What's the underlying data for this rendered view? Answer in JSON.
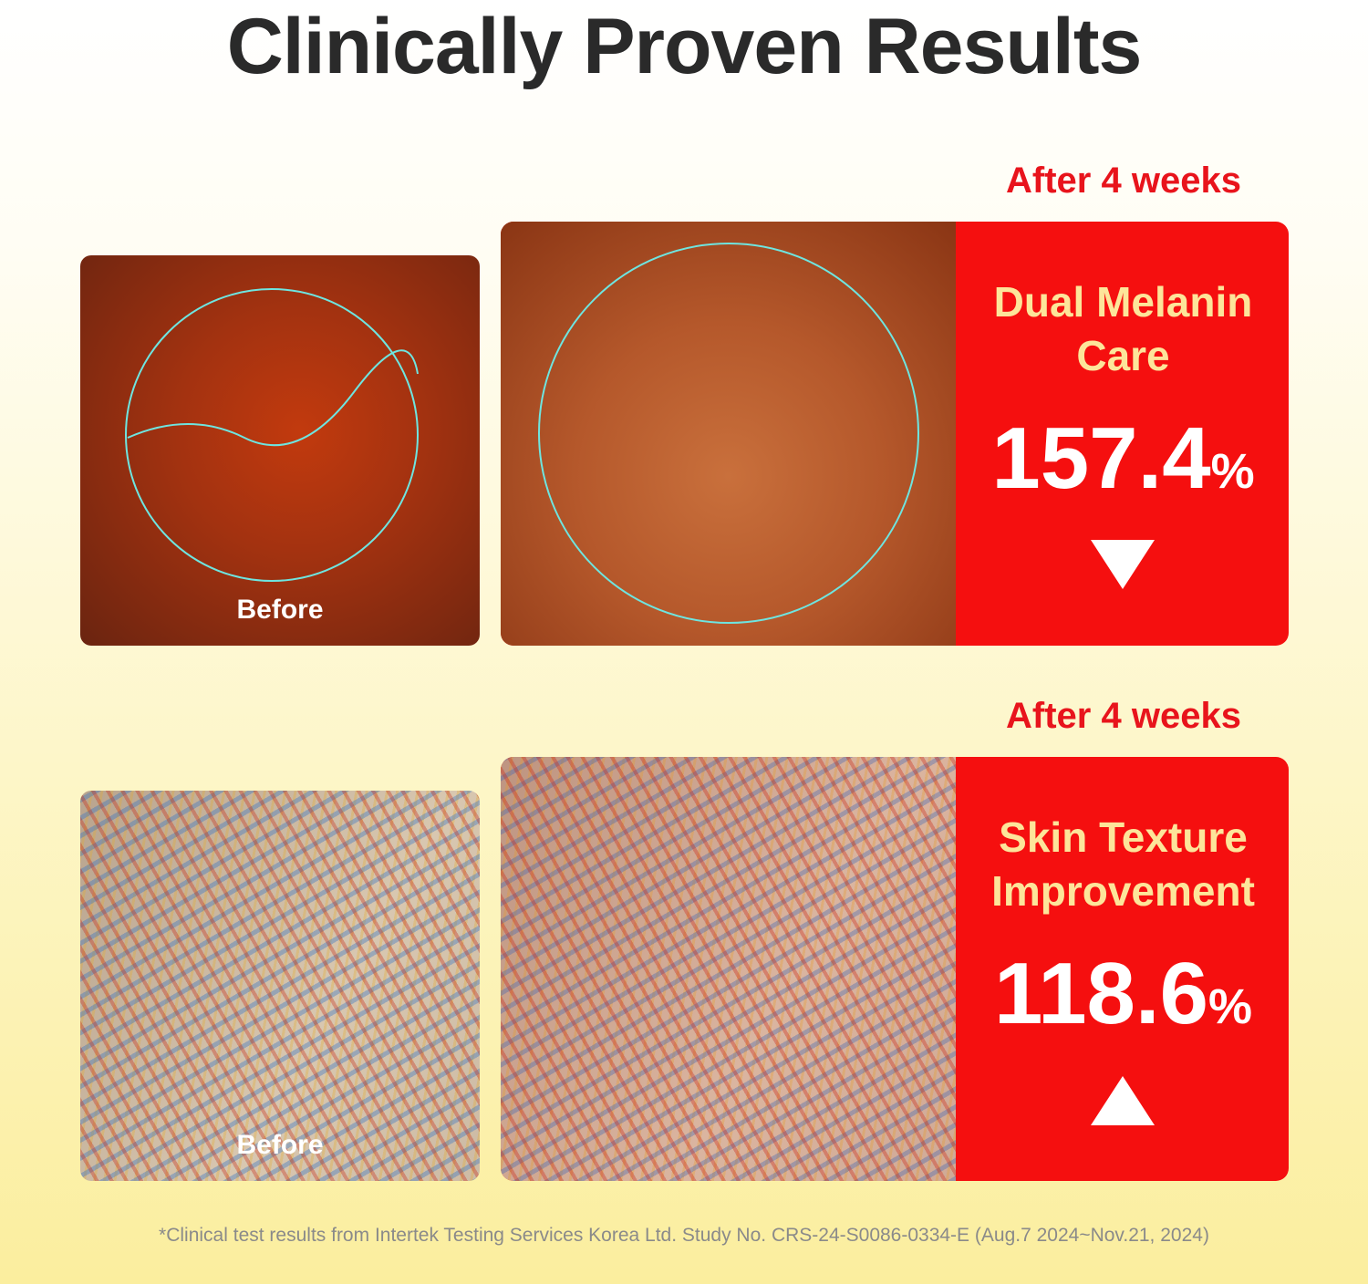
{
  "title": "Clinically Proven Results",
  "sections": [
    {
      "after_label": "After 4 weeks",
      "before_label": "Before",
      "metric_lines": [
        "Dual Melanin",
        "Care"
      ],
      "value": "157.4",
      "unit": "%"
    },
    {
      "after_label": "After 4 weeks",
      "before_label": "Before",
      "metric_lines": [
        "Skin Texture",
        "Improvement"
      ],
      "value": "118.6",
      "unit": "%"
    }
  ],
  "footnote": "*Clinical test results from Intertek Testing Services Korea Ltd. Study No. CRS-24-S0086-0334-E (Aug.7 2024~Nov.21, 2024)"
}
